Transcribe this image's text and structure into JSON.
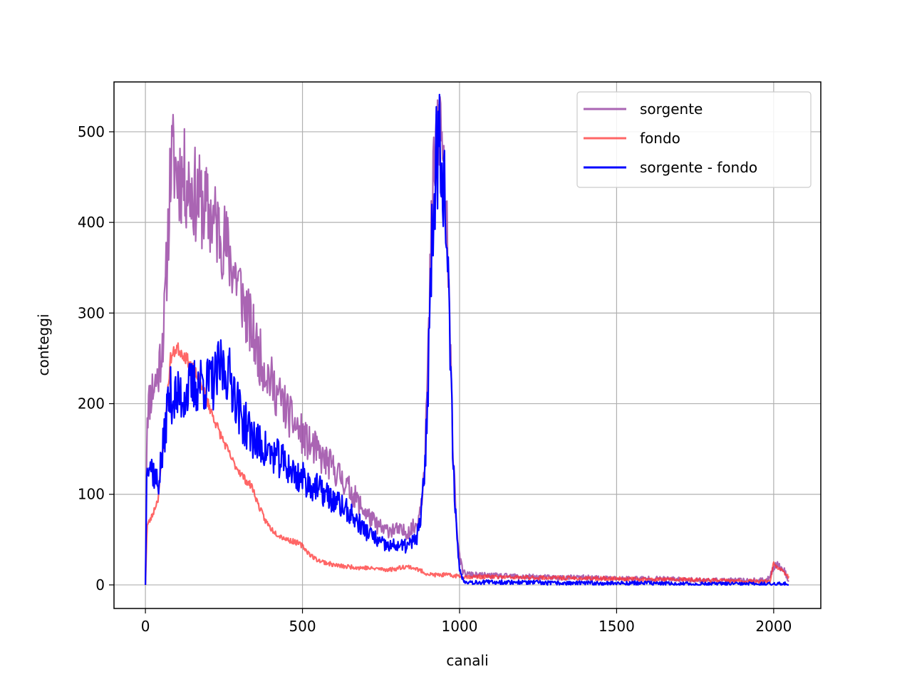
{
  "chart_data": {
    "type": "line",
    "title": "",
    "xlabel": "canali",
    "ylabel": "conteggi",
    "xlim": [
      -100,
      2150
    ],
    "ylim": [
      -26,
      555
    ],
    "xticks": [
      0,
      500,
      1000,
      1500,
      2000
    ],
    "yticks": [
      0,
      100,
      200,
      300,
      400,
      500
    ],
    "grid": true,
    "legend": {
      "position": "top-right"
    },
    "series": [
      {
        "name": "sorgente",
        "color": "#9b4aa6",
        "opacity": 0.85,
        "x": [
          0,
          5,
          20,
          40,
          60,
          70,
          80,
          90,
          100,
          120,
          140,
          160,
          180,
          200,
          220,
          240,
          260,
          280,
          300,
          320,
          340,
          360,
          380,
          400,
          420,
          440,
          460,
          480,
          500,
          520,
          540,
          560,
          580,
          600,
          620,
          640,
          660,
          680,
          700,
          720,
          740,
          760,
          780,
          800,
          820,
          840,
          860,
          870,
          880,
          890,
          900,
          910,
          920,
          930,
          935,
          940,
          950,
          960,
          970,
          980,
          990,
          1000,
          1010,
          1020,
          1040,
          1100,
          1200,
          1300,
          1400,
          1500,
          1600,
          1700,
          1800,
          1900,
          1980,
          2000,
          2010,
          2030,
          2048
        ],
        "y": [
          0,
          190,
          215,
          230,
          290,
          370,
          460,
          470,
          455,
          450,
          440,
          430,
          420,
          410,
          400,
          390,
          370,
          350,
          330,
          300,
          280,
          255,
          240,
          225,
          210,
          200,
          185,
          175,
          165,
          155,
          150,
          140,
          135,
          128,
          120,
          110,
          100,
          90,
          80,
          72,
          65,
          60,
          62,
          60,
          58,
          60,
          65,
          75,
          100,
          150,
          250,
          380,
          470,
          500,
          510,
          505,
          460,
          380,
          260,
          150,
          70,
          30,
          15,
          12,
          11,
          10,
          9,
          8,
          8,
          7,
          7,
          6,
          5,
          5,
          5,
          20,
          22,
          18,
          5
        ],
        "noise": 0.12,
        "seed": 11
      },
      {
        "name": "fondo",
        "color": "#ff3333",
        "opacity": 0.75,
        "x": [
          0,
          5,
          20,
          40,
          60,
          80,
          100,
          120,
          150,
          180,
          200,
          220,
          240,
          260,
          280,
          300,
          320,
          340,
          360,
          380,
          400,
          420,
          440,
          460,
          480,
          500,
          520,
          540,
          560,
          580,
          600,
          620,
          640,
          660,
          680,
          700,
          720,
          740,
          760,
          780,
          800,
          820,
          840,
          860,
          880,
          900,
          920,
          940,
          960,
          980,
          1000,
          1020,
          1050,
          1100,
          1200,
          1300,
          1400,
          1500,
          1600,
          1700,
          1800,
          1900,
          1990,
          2000,
          2010,
          2030,
          2048
        ],
        "y": [
          0,
          65,
          75,
          95,
          165,
          250,
          262,
          255,
          240,
          220,
          200,
          182,
          165,
          150,
          135,
          125,
          115,
          108,
          88,
          72,
          62,
          56,
          52,
          49,
          47,
          43,
          35,
          29,
          26,
          24,
          22,
          21,
          20,
          20,
          19,
          19,
          18,
          18,
          17,
          17,
          18,
          20,
          20,
          18,
          15,
          12,
          11,
          11,
          11,
          10,
          10,
          9,
          9,
          9,
          8,
          8,
          7,
          7,
          6,
          6,
          5,
          4,
          4,
          26,
          20,
          15,
          8
        ],
        "noise": 0.02,
        "seed": 23
      },
      {
        "name": "sorgente - fondo",
        "color": "#0000ff",
        "opacity": 1.0,
        "x": [
          0,
          5,
          20,
          40,
          60,
          70,
          80,
          100,
          120,
          140,
          160,
          180,
          200,
          220,
          240,
          260,
          280,
          300,
          320,
          340,
          360,
          380,
          400,
          420,
          440,
          460,
          480,
          500,
          520,
          540,
          560,
          580,
          600,
          620,
          640,
          660,
          680,
          700,
          720,
          740,
          760,
          780,
          800,
          820,
          840,
          860,
          870,
          880,
          890,
          900,
          910,
          920,
          930,
          935,
          940,
          950,
          960,
          970,
          980,
          990,
          1000,
          1010,
          1020,
          1040,
          1100,
          1200,
          1300,
          1400,
          1500,
          1600,
          1700,
          1800,
          1900,
          1980,
          2000,
          2010,
          2030,
          2048
        ],
        "y": [
          0,
          145,
          130,
          110,
          160,
          200,
          210,
          205,
          210,
          215,
          220,
          225,
          220,
          225,
          240,
          235,
          220,
          190,
          175,
          165,
          155,
          150,
          145,
          140,
          135,
          128,
          120,
          118,
          112,
          108,
          103,
          98,
          92,
          88,
          82,
          75,
          68,
          60,
          55,
          48,
          44,
          42,
          44,
          42,
          44,
          50,
          60,
          85,
          130,
          230,
          360,
          450,
          480,
          500,
          495,
          450,
          370,
          250,
          140,
          60,
          18,
          6,
          4,
          3,
          3,
          3,
          2,
          2,
          2,
          2,
          1,
          1,
          1,
          1,
          1,
          1,
          1,
          1
        ],
        "noise": 0.14,
        "seed": 37
      }
    ]
  }
}
